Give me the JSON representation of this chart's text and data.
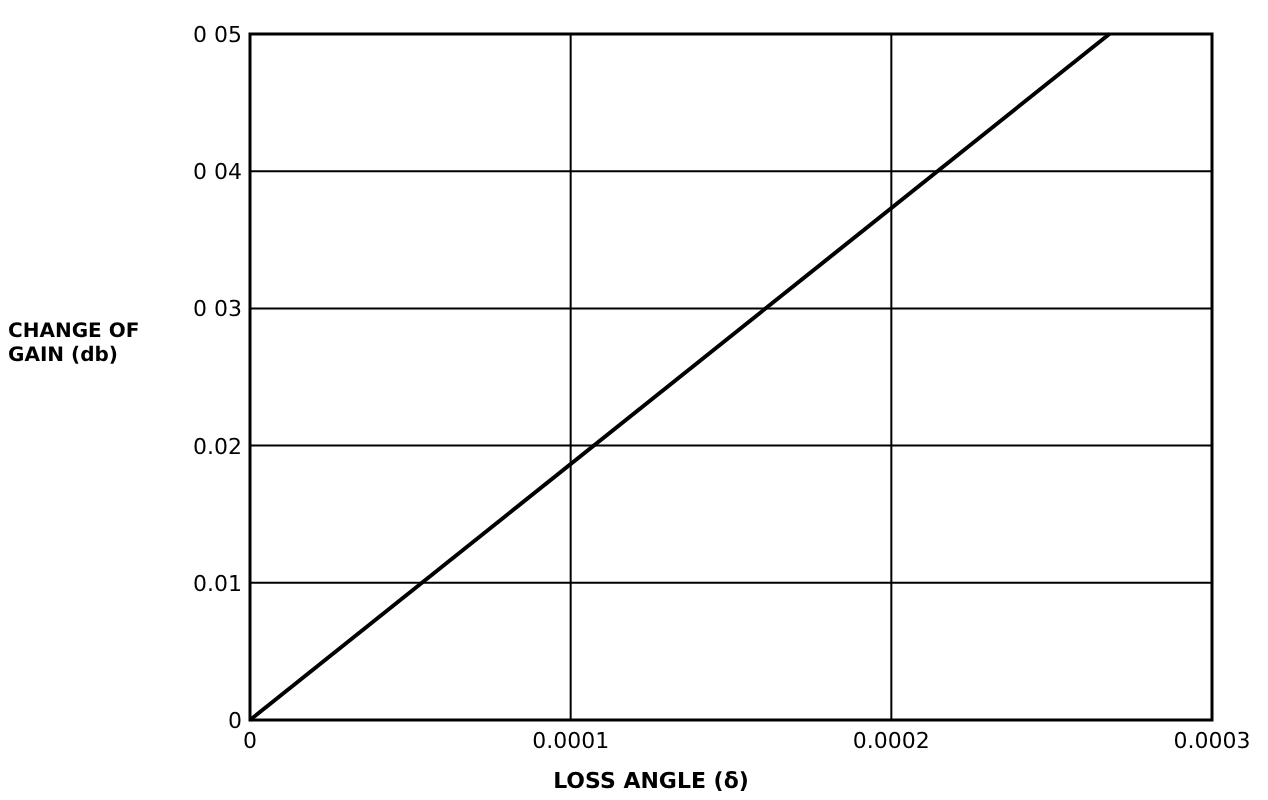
{
  "chart_data": {
    "type": "line",
    "xlabel": "LOSS ANGLE (δ)",
    "ylabel": "CHANGE OF GAIN (db)",
    "x": [
      0,
      0.000268
    ],
    "series": [
      {
        "color": "#000000",
        "values": [
          0,
          0.05
        ]
      }
    ],
    "xlim": [
      0,
      0.0003
    ],
    "ylim": [
      0,
      0.05
    ],
    "xticks": [
      0,
      {
        "value": 0.0001,
        "label": "0.0001"
      },
      {
        "value": 0.0002,
        "label": "0.0002"
      },
      {
        "value": 0.0003,
        "label": "0.0003"
      }
    ],
    "yticks": [
      0,
      {
        "value": 0.01,
        "label": "0.01"
      },
      {
        "value": 0.02,
        "label": "0.02"
      },
      {
        "value": 0.03,
        "label": "0 03"
      },
      {
        "value": 0.04,
        "label": "0 04"
      },
      {
        "value": 0.05,
        "label": "0 05"
      }
    ],
    "grid": true,
    "marker": "none",
    "line_style": "solid"
  }
}
